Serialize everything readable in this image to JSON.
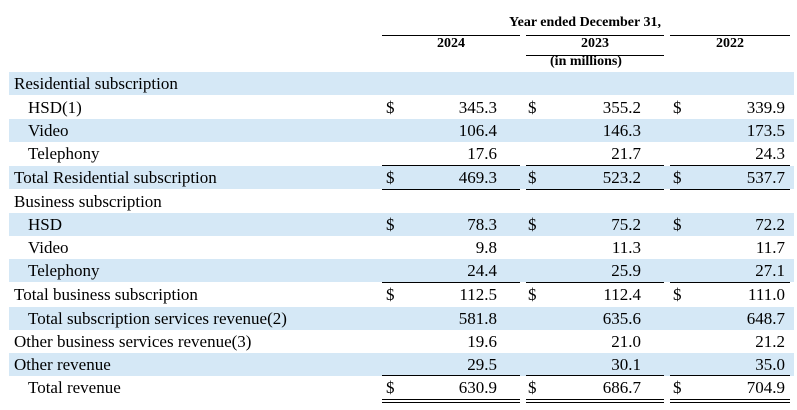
{
  "header": {
    "period_label": "Year ended December 31,",
    "years": [
      "2024",
      "2023",
      "2022"
    ],
    "unit_note": "(in millions)"
  },
  "rows": [
    {
      "label": "Residential subscription",
      "values": [
        "",
        "",
        ""
      ],
      "dollar": [
        false,
        false,
        false
      ]
    },
    {
      "label": "HSD(1)",
      "values": [
        "345.3",
        "355.2",
        "339.9"
      ],
      "dollar": [
        true,
        true,
        true
      ]
    },
    {
      "label": "Video",
      "values": [
        "106.4",
        "146.3",
        "173.5"
      ],
      "dollar": [
        false,
        false,
        false
      ]
    },
    {
      "label": "Telephony",
      "values": [
        "17.6",
        "21.7",
        "24.3"
      ],
      "dollar": [
        false,
        false,
        false
      ]
    },
    {
      "label": "Total Residential subscription",
      "values": [
        "469.3",
        "523.2",
        "537.7"
      ],
      "dollar": [
        true,
        true,
        true
      ]
    },
    {
      "label": "Business subscription",
      "values": [
        "",
        "",
        ""
      ],
      "dollar": [
        false,
        false,
        false
      ]
    },
    {
      "label": "HSD",
      "values": [
        "78.3",
        "75.2",
        "72.2"
      ],
      "dollar": [
        true,
        true,
        true
      ]
    },
    {
      "label": "Video",
      "values": [
        "9.8",
        "11.3",
        "11.7"
      ],
      "dollar": [
        false,
        false,
        false
      ]
    },
    {
      "label": "Telephony",
      "values": [
        "24.4",
        "25.9",
        "27.1"
      ],
      "dollar": [
        false,
        false,
        false
      ]
    },
    {
      "label": "Total business subscription",
      "values": [
        "112.5",
        "112.4",
        "111.0"
      ],
      "dollar": [
        true,
        true,
        true
      ]
    },
    {
      "label": "Total subscription services revenue(2)",
      "values": [
        "581.8",
        "635.6",
        "648.7"
      ],
      "dollar": [
        false,
        false,
        false
      ]
    },
    {
      "label": "Other business services revenue(3)",
      "values": [
        "19.6",
        "21.0",
        "21.2"
      ],
      "dollar": [
        false,
        false,
        false
      ]
    },
    {
      "label": "Other revenue",
      "values": [
        "29.5",
        "30.1",
        "35.0"
      ],
      "dollar": [
        false,
        false,
        false
      ]
    },
    {
      "label": "Total revenue",
      "values": [
        "630.9",
        "686.7",
        "704.9"
      ],
      "dollar": [
        true,
        true,
        true
      ]
    }
  ],
  "currency_symbol": "$",
  "colors": {
    "row_shade": "#d5e8f6"
  }
}
